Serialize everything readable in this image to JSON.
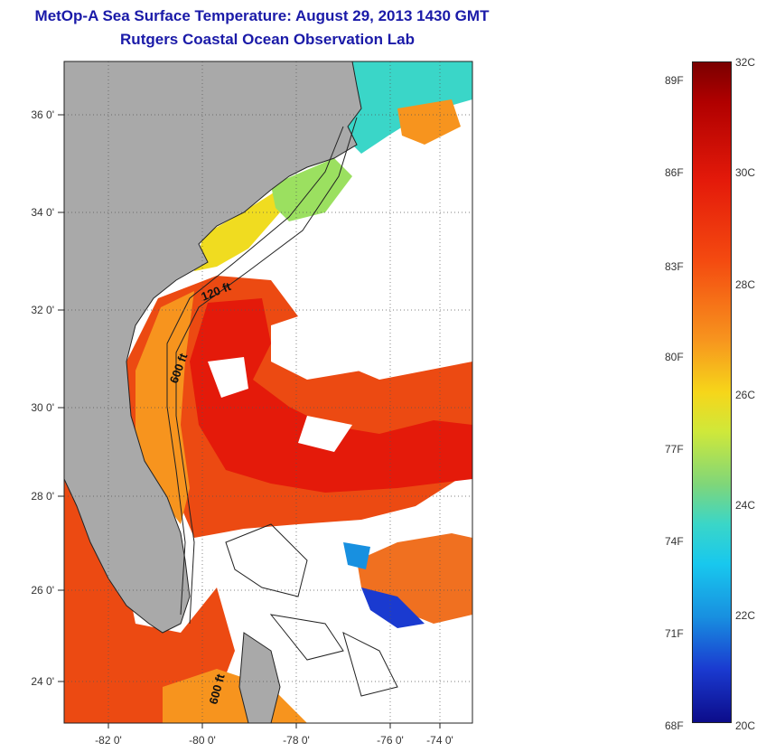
{
  "title_line1": "MetOp-A Sea Surface Temperature:  August 29, 2013 1430 GMT",
  "title_line2": "Rutgers Coastal Ocean Observation Lab",
  "map": {
    "lat_labels": [
      "36 0'",
      "34 0'",
      "32 0'",
      "30 0'",
      "28 0'",
      "26 0'",
      "24 0'"
    ],
    "lon_labels": [
      "-82 0'",
      "-80 0'",
      "-78 0'",
      "-76 0'",
      "-74 0'"
    ],
    "isobath_labels": [
      "120 ft",
      "600 ft",
      "600 ft"
    ],
    "colors": {
      "land": "#a9a9a9",
      "coast_line": "#222222",
      "warm": "#ec4a12",
      "hot": "#e41a0a",
      "cool": "#3ad6c8",
      "mid": "#f7941e",
      "yellow": "#f0dc20",
      "green": "#9be060"
    }
  },
  "colorbar": {
    "fahrenheit_labels": [
      "89F",
      "86F",
      "83F",
      "80F",
      "77F",
      "74F",
      "71F",
      "68F"
    ],
    "celsius_labels": [
      "32C",
      "30C",
      "28C",
      "26C",
      "24C",
      "22C",
      "20C"
    ]
  }
}
